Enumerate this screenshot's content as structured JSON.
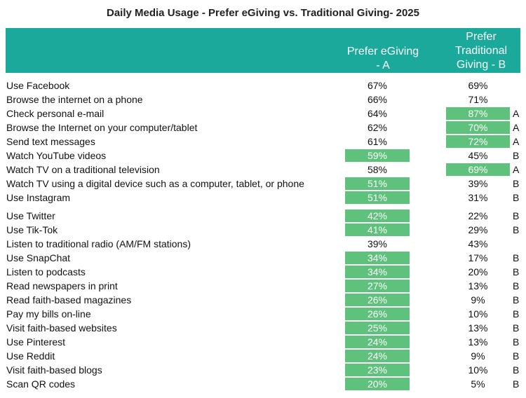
{
  "title": "Daily Media Usage  - Prefer eGiving vs. Traditional Giving- 2025",
  "header": {
    "col_a": "Prefer eGiving - A",
    "col_b": "Prefer Traditional Giving - B"
  },
  "colors": {
    "header_bg": "#1aa99a",
    "highlight": "#5fc27c"
  },
  "rows": [
    {
      "label": "Use Facebook",
      "a": "67%",
      "b": "69%",
      "a_hl": false,
      "b_hl": false,
      "sig": ""
    },
    {
      "label": "Browse the internet on a phone",
      "a": "66%",
      "b": "71%",
      "a_hl": false,
      "b_hl": false,
      "sig": ""
    },
    {
      "label": "Check personal e-mail",
      "a": "64%",
      "b": "87%",
      "a_hl": false,
      "b_hl": true,
      "sig": "A"
    },
    {
      "label": "Browse the Internet on your computer/tablet",
      "a": "62%",
      "b": "70%",
      "a_hl": false,
      "b_hl": true,
      "sig": "A"
    },
    {
      "label": "Send text messages",
      "a": "61%",
      "b": "72%",
      "a_hl": false,
      "b_hl": true,
      "sig": "A"
    },
    {
      "label": "Watch YouTube videos",
      "a": "59%",
      "b": "45%",
      "a_hl": true,
      "b_hl": false,
      "sig": "B"
    },
    {
      "label": "Watch TV on a traditional television",
      "a": "58%",
      "b": "69%",
      "a_hl": false,
      "b_hl": true,
      "sig": "A"
    },
    {
      "label": "Watch TV using a digital device such as a computer, tablet, or phone",
      "a": "51%",
      "b": "39%",
      "a_hl": true,
      "b_hl": false,
      "sig": "B"
    },
    {
      "label": "Use Instagram",
      "a": "51%",
      "b": "31%",
      "a_hl": true,
      "b_hl": false,
      "sig": "B"
    },
    {
      "label": "Use Twitter",
      "a": "42%",
      "b": "22%",
      "a_hl": true,
      "b_hl": false,
      "sig": "B"
    },
    {
      "label": "Use Tik-Tok",
      "a": "41%",
      "b": "29%",
      "a_hl": true,
      "b_hl": false,
      "sig": "B"
    },
    {
      "label": "Listen to traditional radio (AM/FM stations)",
      "a": "39%",
      "b": "43%",
      "a_hl": false,
      "b_hl": false,
      "sig": ""
    },
    {
      "label": "Use SnapChat",
      "a": "34%",
      "b": "17%",
      "a_hl": true,
      "b_hl": false,
      "sig": "B"
    },
    {
      "label": "Listen to podcasts",
      "a": "34%",
      "b": "20%",
      "a_hl": true,
      "b_hl": false,
      "sig": "B"
    },
    {
      "label": "Read newspapers in print",
      "a": "27%",
      "b": "13%",
      "a_hl": true,
      "b_hl": false,
      "sig": "B"
    },
    {
      "label": "Read faith-based magazines",
      "a": "26%",
      "b": "9%",
      "a_hl": true,
      "b_hl": false,
      "sig": "B"
    },
    {
      "label": "Pay my bills on-line",
      "a": "26%",
      "b": "10%",
      "a_hl": true,
      "b_hl": false,
      "sig": "B"
    },
    {
      "label": "Visit faith-based websites",
      "a": "25%",
      "b": "13%",
      "a_hl": true,
      "b_hl": false,
      "sig": "B"
    },
    {
      "label": "Use Pinterest",
      "a": "24%",
      "b": "13%",
      "a_hl": true,
      "b_hl": false,
      "sig": "B"
    },
    {
      "label": "Use Reddit",
      "a": "24%",
      "b": "9%",
      "a_hl": true,
      "b_hl": false,
      "sig": "B"
    },
    {
      "label": "Visit faith-based blogs",
      "a": "23%",
      "b": "10%",
      "a_hl": true,
      "b_hl": false,
      "sig": "B"
    },
    {
      "label": "Scan QR codes",
      "a": "20%",
      "b": "5%",
      "a_hl": true,
      "b_hl": false,
      "sig": "B"
    }
  ]
}
